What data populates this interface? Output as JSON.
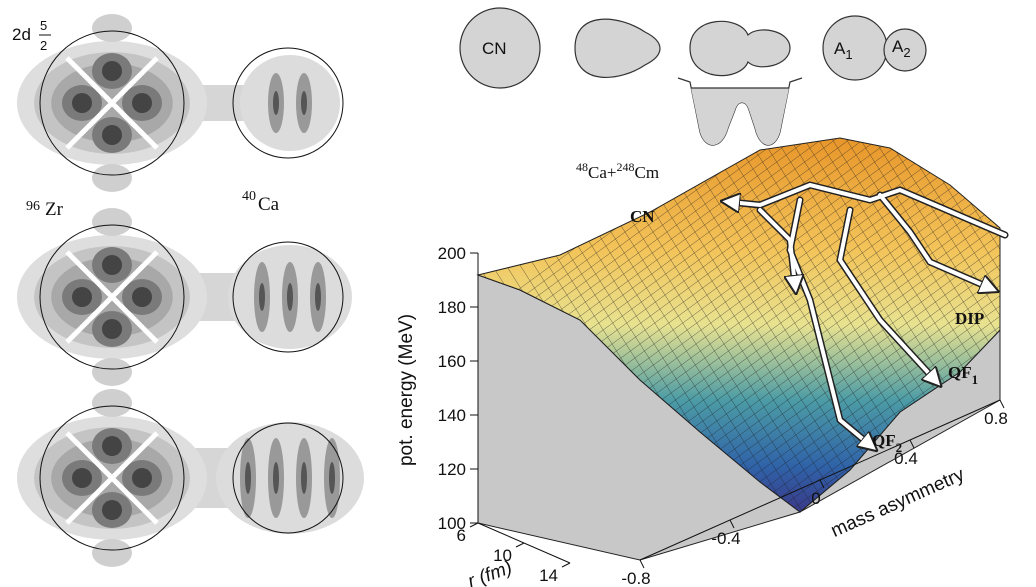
{
  "left_panel": {
    "orbital": "2d",
    "orbital_j_num": "5",
    "orbital_j_den": "2",
    "nucleus_1": {
      "mass": "96",
      "symbol": "Zr"
    },
    "nucleus_2": {
      "mass": "40",
      "symbol": "Ca"
    }
  },
  "shapes": {
    "compound": "CN",
    "fragment_1": {
      "symbol": "A",
      "index": "1"
    },
    "fragment_2": {
      "symbol": "A",
      "index": "2"
    }
  },
  "surface": {
    "reaction": {
      "mass_1": "48",
      "symbol_1": "Ca+",
      "mass_2": "248",
      "symbol_2": "Cm"
    },
    "labels": {
      "cn": "CN",
      "dip": "DIP",
      "qf1": {
        "main": "QF",
        "sub": "1"
      },
      "qf2": {
        "main": "QF",
        "sub": "2"
      }
    }
  },
  "axes": {
    "energy": {
      "label": "pot. energy (MeV)",
      "ticks": [
        100,
        120,
        140,
        160,
        180,
        200
      ]
    },
    "r": {
      "label": "r (fm)",
      "ticks": [
        6,
        10,
        14
      ]
    },
    "asymmetry": {
      "label": "mass asymmetry",
      "ticks": [
        -0.8,
        -0.4,
        0,
        0.4,
        0.8
      ]
    }
  }
}
